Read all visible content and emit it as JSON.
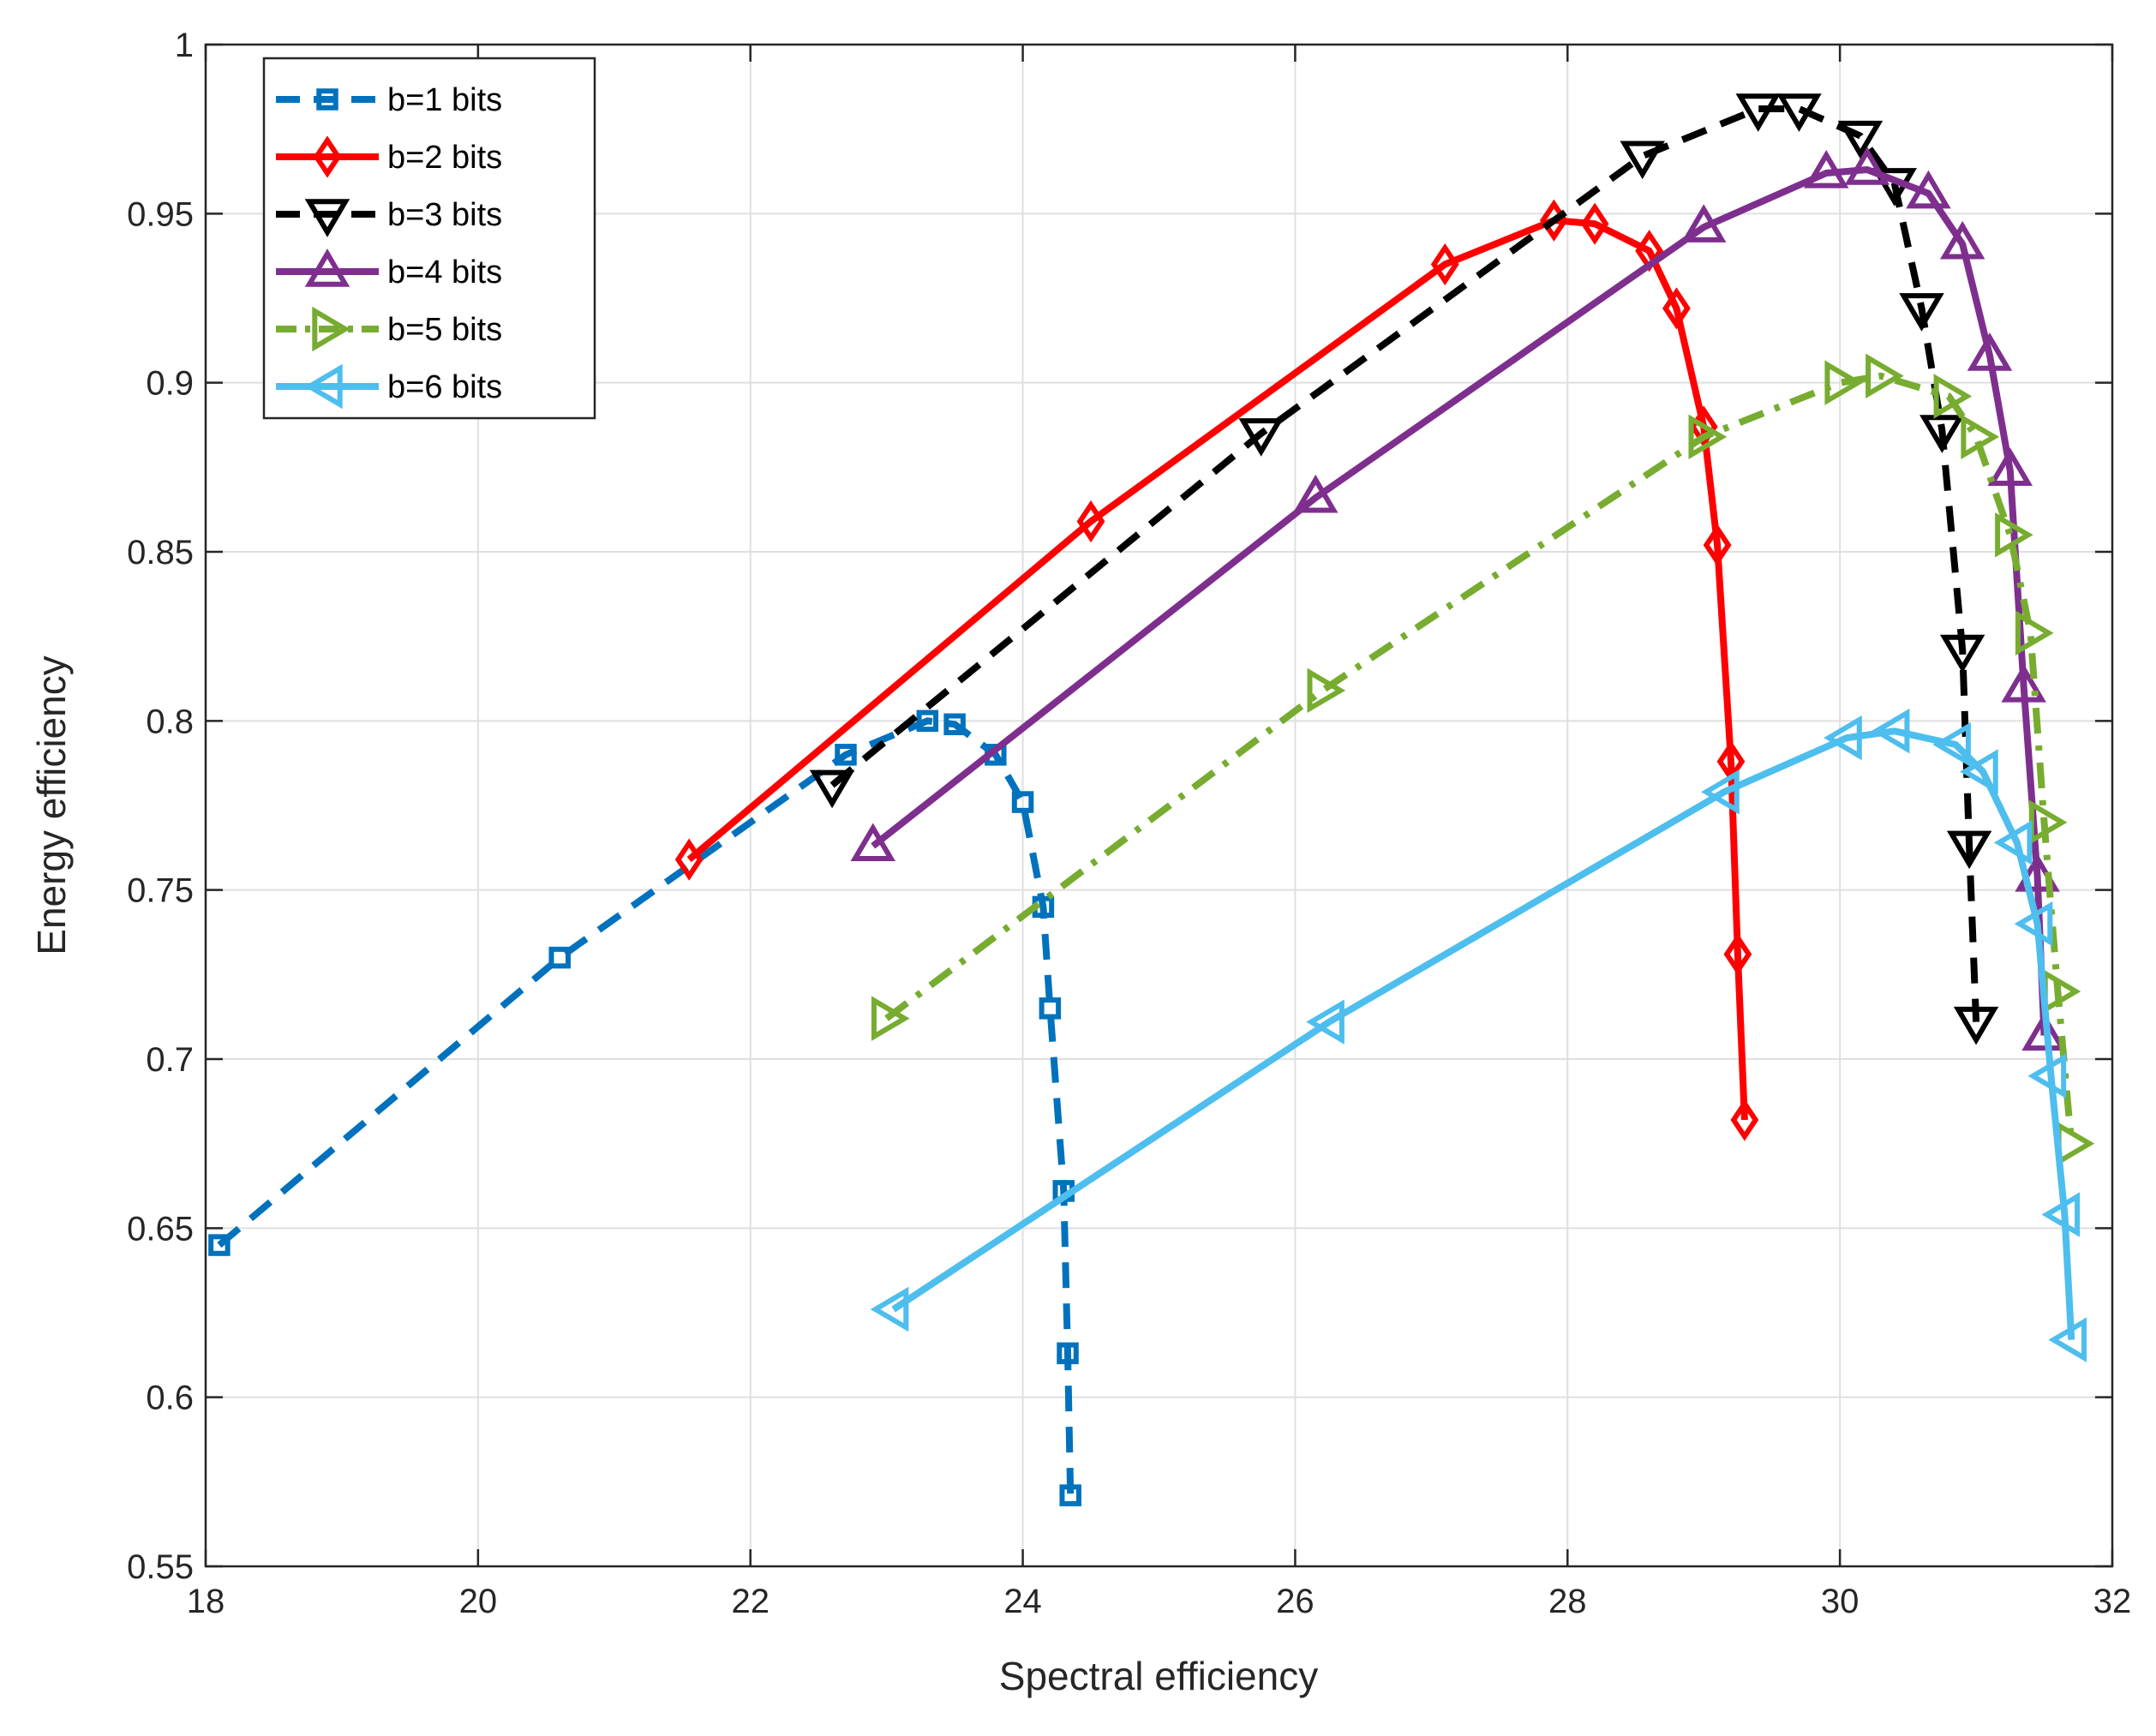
{
  "chart_data": {
    "type": "line",
    "title": "",
    "xlabel": "Spectral efficiency",
    "ylabel": "Energy efficiency",
    "xlim": [
      18,
      32
    ],
    "ylim": [
      0.55,
      1
    ],
    "xticks": [
      18,
      20,
      22,
      24,
      26,
      28,
      30,
      32
    ],
    "yticks": [
      0.55,
      0.6,
      0.65,
      0.7,
      0.75,
      0.8,
      0.85,
      0.9,
      0.95,
      1
    ],
    "xtick_labels": [
      "18",
      "20",
      "22",
      "24",
      "26",
      "28",
      "30",
      "32"
    ],
    "ytick_labels": [
      "0.55",
      "0.6",
      "0.65",
      "0.7",
      "0.75",
      "0.8",
      "0.85",
      "0.9",
      "0.95",
      "1"
    ],
    "grid": true,
    "legend_position": "top-left",
    "series": [
      {
        "name": "b=1 bits",
        "color": "#0072BD",
        "line_style": "dashed",
        "marker": "square",
        "x": [
          18.1,
          20.6,
          22.7,
          23.3,
          23.5,
          23.8,
          24.0,
          24.15,
          24.2,
          24.3,
          24.33,
          24.35
        ],
        "y": [
          0.645,
          0.73,
          0.79,
          0.8,
          0.799,
          0.79,
          0.776,
          0.745,
          0.715,
          0.661,
          0.613,
          0.571
        ]
      },
      {
        "name": "b=2 bits",
        "color": "#FF0000",
        "line_style": "solid",
        "marker": "diamond",
        "x": [
          21.55,
          24.5,
          27.1,
          27.9,
          28.2,
          28.6,
          28.8,
          29.0,
          29.1,
          29.2,
          29.25,
          29.3
        ],
        "y": [
          0.759,
          0.859,
          0.935,
          0.948,
          0.947,
          0.939,
          0.922,
          0.887,
          0.852,
          0.788,
          0.731,
          0.682
        ]
      },
      {
        "name": "b=3 bits",
        "color": "#000000",
        "line_style": "dashed",
        "marker": "triangle-down",
        "x": [
          22.6,
          25.75,
          28.55,
          29.4,
          29.7,
          30.15,
          30.4,
          30.6,
          30.75,
          30.9,
          30.95,
          31.0
        ],
        "y": [
          0.781,
          0.885,
          0.967,
          0.981,
          0.981,
          0.973,
          0.959,
          0.922,
          0.886,
          0.821,
          0.763,
          0.711
        ]
      },
      {
        "name": "b=4 bits",
        "color": "#7E2F8E",
        "line_style": "solid",
        "marker": "triangle-up",
        "x": [
          22.9,
          26.15,
          29.0,
          29.9,
          30.2,
          30.65,
          30.9,
          31.1,
          31.25,
          31.35,
          31.45,
          31.5
        ],
        "y": [
          0.763,
          0.866,
          0.946,
          0.962,
          0.963,
          0.956,
          0.941,
          0.908,
          0.874,
          0.81,
          0.754,
          0.707
        ]
      },
      {
        "name": "b=5 bits",
        "color": "#77AC30",
        "line_style": "dashdot",
        "marker": "triangle-right",
        "x": [
          23.0,
          26.2,
          29.0,
          30.0,
          30.3,
          30.8,
          31.0,
          31.25,
          31.4,
          31.5,
          31.6,
          31.7
        ],
        "y": [
          0.712,
          0.809,
          0.884,
          0.9,
          0.902,
          0.896,
          0.884,
          0.855,
          0.826,
          0.77,
          0.72,
          0.675
        ]
      },
      {
        "name": "b=6 bits",
        "color": "#4DBEEE",
        "line_style": "solid",
        "marker": "triangle-left",
        "x": [
          23.05,
          26.25,
          29.15,
          30.05,
          30.4,
          30.85,
          31.05,
          31.3,
          31.45,
          31.55,
          31.65,
          31.7
        ],
        "y": [
          0.626,
          0.711,
          0.779,
          0.795,
          0.797,
          0.793,
          0.785,
          0.764,
          0.74,
          0.695,
          0.654,
          0.617
        ]
      }
    ]
  }
}
